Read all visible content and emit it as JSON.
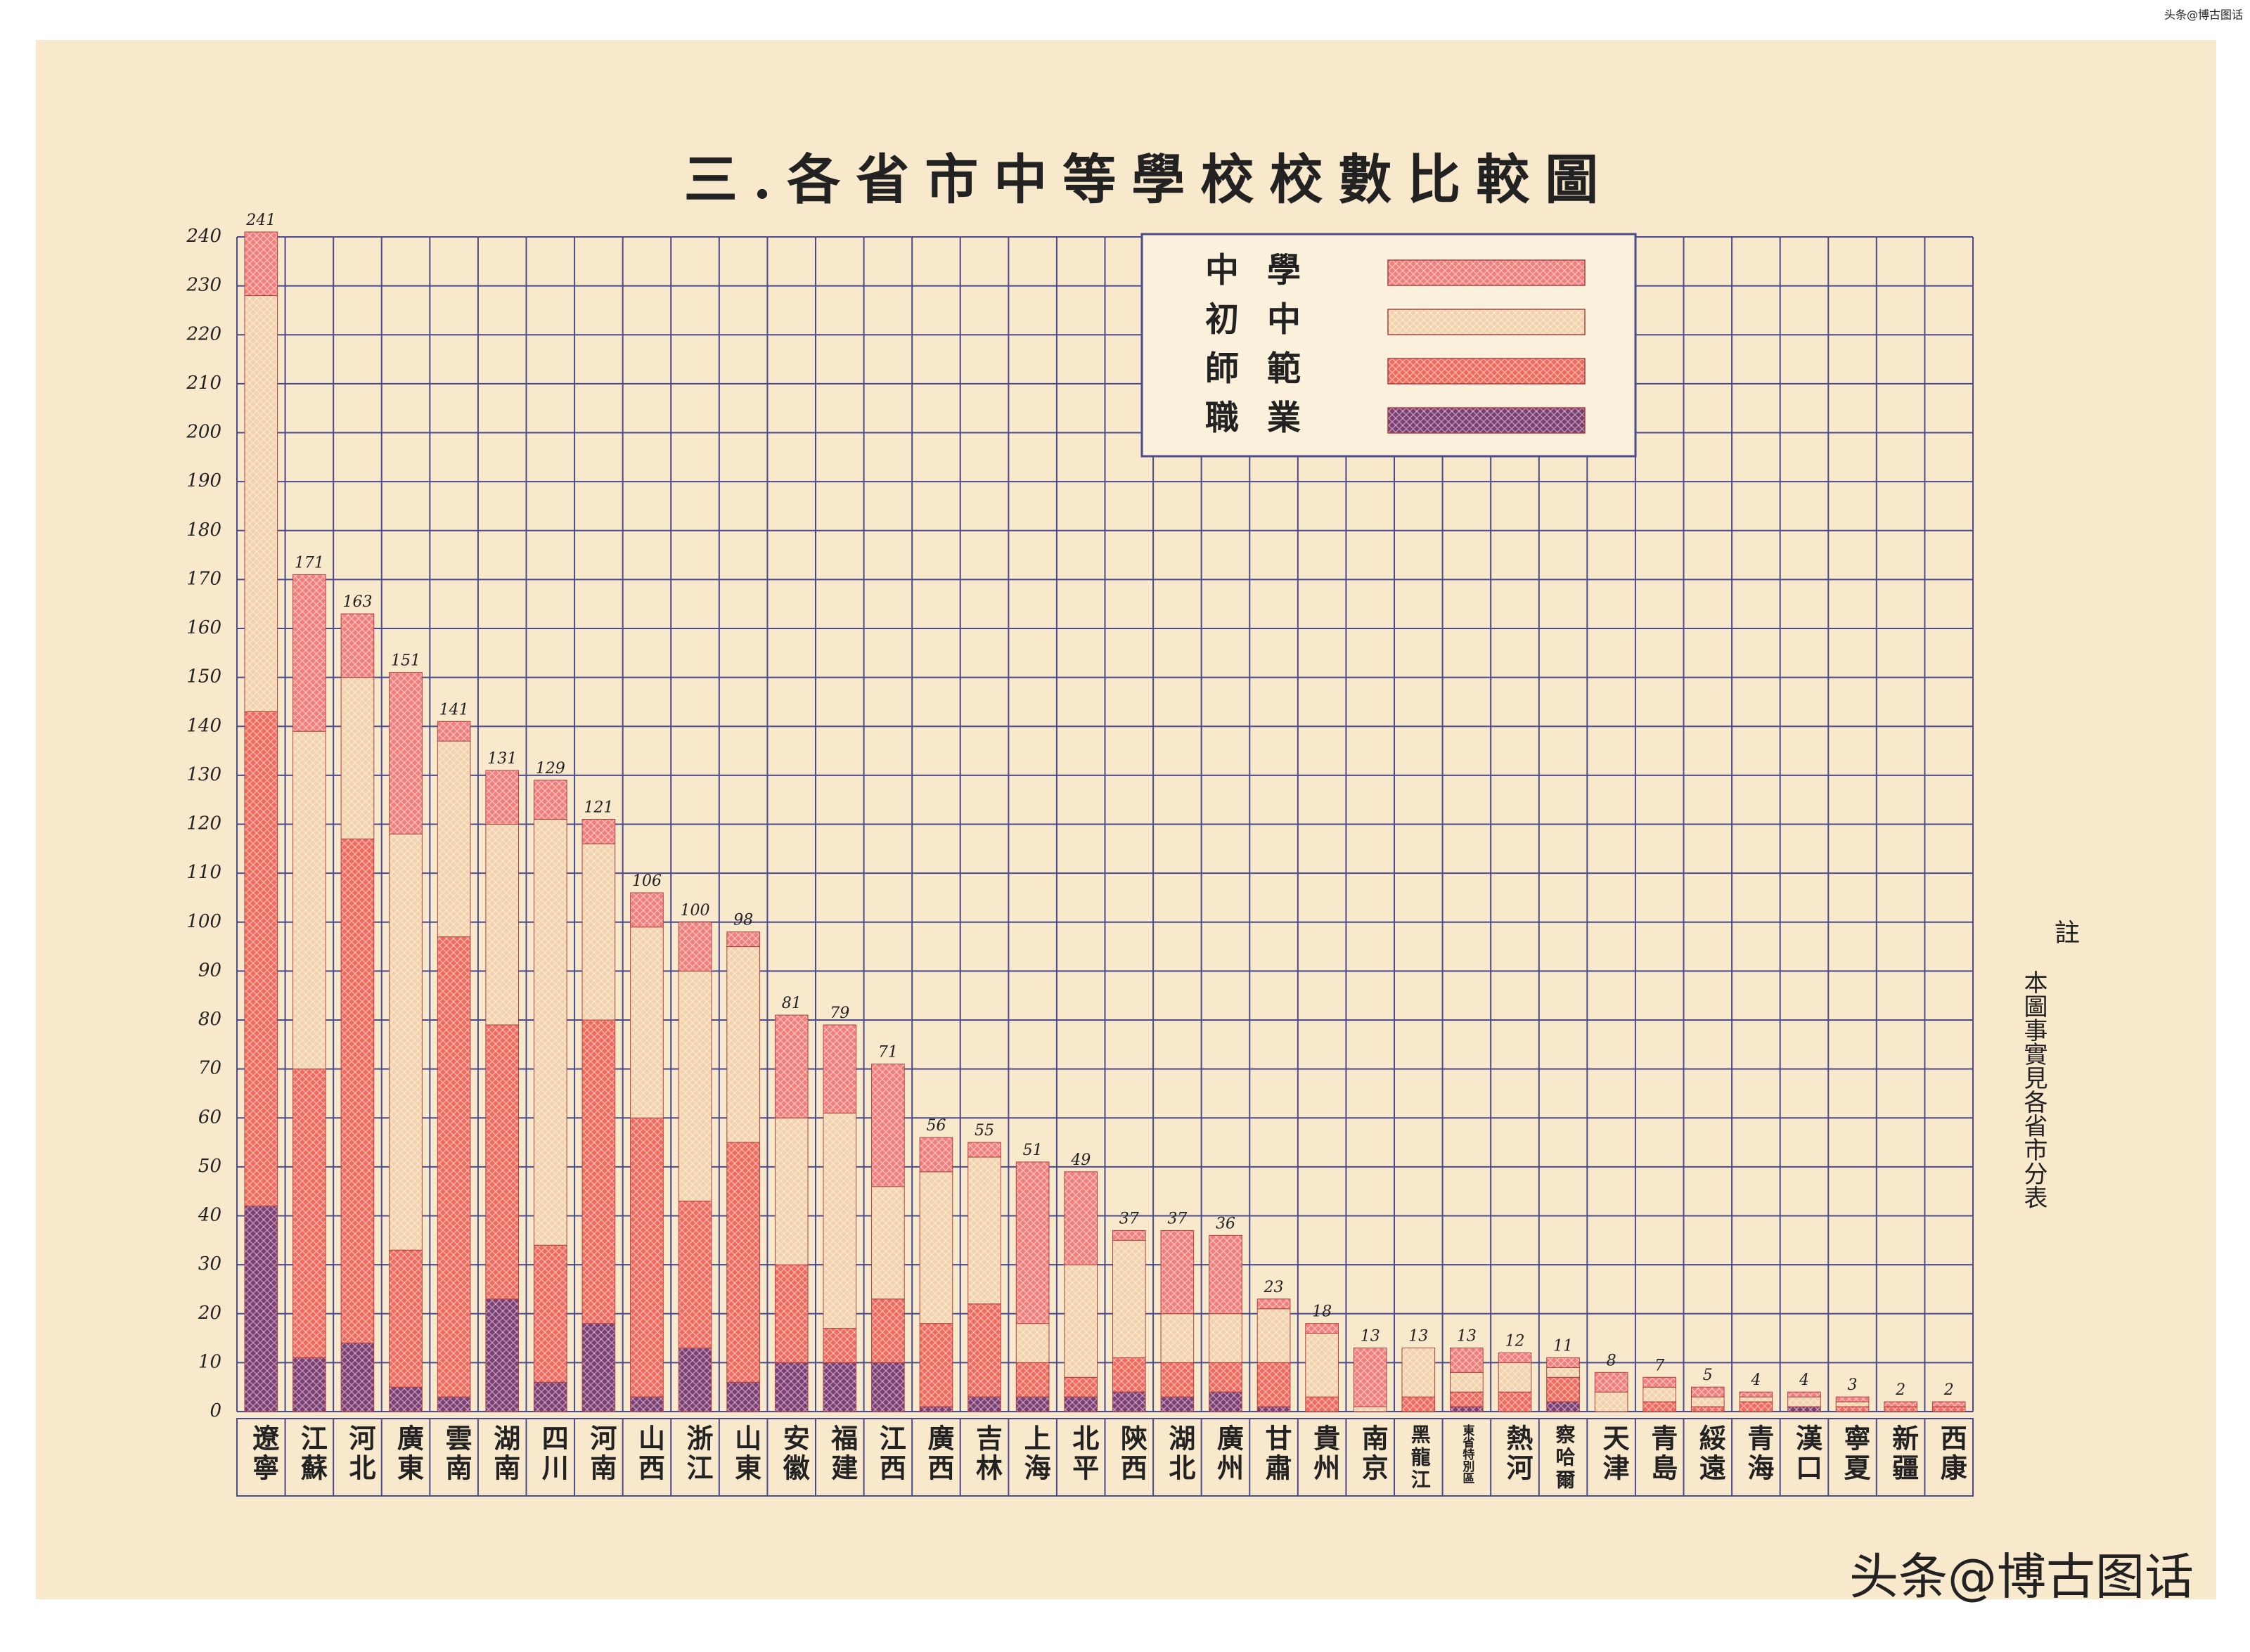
{
  "chart_data": {
    "type": "stacked_bar",
    "title": "三.各省市中等學校校數比較圖",
    "categories": [
      "遼寧",
      "江蘇",
      "河北",
      "廣東",
      "雲南",
      "湖南",
      "四川",
      "河南",
      "山西",
      "浙江",
      "山東",
      "安徽",
      "福建",
      "江西",
      "廣西",
      "吉林",
      "上海",
      "北平",
      "陝西",
      "湖北",
      "廣州",
      "甘肅",
      "貴州",
      "南京",
      "黑龍江",
      "東省特別區",
      "熱河",
      "察哈爾",
      "天津",
      "青島",
      "綏遠",
      "青海",
      "漢口",
      "寧夏",
      "新疆",
      "西康"
    ],
    "series": [
      {
        "name": "中學",
        "color": "#f07f7c",
        "values": [
          13,
          32,
          13,
          33,
          4,
          11,
          8,
          5,
          7,
          10,
          3,
          21,
          18,
          25,
          7,
          3,
          33,
          19,
          2,
          17,
          16,
          2,
          2,
          12,
          0,
          5,
          2,
          2,
          4,
          2,
          2,
          1,
          1,
          1,
          1,
          1
        ]
      },
      {
        "name": "初中",
        "color": "#f2d2aa",
        "values": [
          85,
          69,
          33,
          85,
          40,
          41,
          87,
          36,
          39,
          47,
          40,
          30,
          44,
          23,
          31,
          30,
          8,
          23,
          24,
          10,
          10,
          11,
          13,
          1,
          10,
          4,
          6,
          2,
          4,
          3,
          2,
          1,
          2,
          1,
          0,
          0
        ]
      },
      {
        "name": "師範",
        "color": "#ee6a5c",
        "values": [
          101,
          59,
          103,
          28,
          94,
          56,
          28,
          62,
          57,
          30,
          49,
          20,
          7,
          13,
          17,
          19,
          7,
          4,
          7,
          7,
          6,
          9,
          3,
          0,
          3,
          3,
          4,
          5,
          0,
          2,
          1,
          2,
          0,
          1,
          1,
          1
        ]
      },
      {
        "name": "職業",
        "color": "#7b3d72",
        "values": [
          42,
          11,
          14,
          5,
          3,
          23,
          6,
          18,
          3,
          13,
          6,
          10,
          10,
          10,
          1,
          3,
          3,
          3,
          4,
          3,
          4,
          1,
          0,
          0,
          0,
          1,
          0,
          2,
          0,
          0,
          0,
          0,
          1,
          0,
          0,
          0
        ]
      }
    ],
    "totals": [
      241,
      171,
      163,
      151,
      141,
      131,
      129,
      121,
      106,
      100,
      98,
      81,
      79,
      71,
      56,
      55,
      51,
      49,
      37,
      37,
      36,
      23,
      18,
      13,
      13,
      13,
      12,
      11,
      8,
      7,
      5,
      4,
      4,
      3,
      2,
      2
    ],
    "ylim": [
      0,
      240
    ],
    "yticks": [
      0,
      10,
      20,
      30,
      40,
      50,
      60,
      70,
      80,
      90,
      100,
      110,
      120,
      130,
      140,
      150,
      160,
      170,
      180,
      190,
      200,
      210,
      220,
      230,
      240
    ],
    "grid": true,
    "legend": "top-right",
    "note_title": "註",
    "note": "本圖事實見各省市分表",
    "watermark": "头条@博古图话"
  }
}
